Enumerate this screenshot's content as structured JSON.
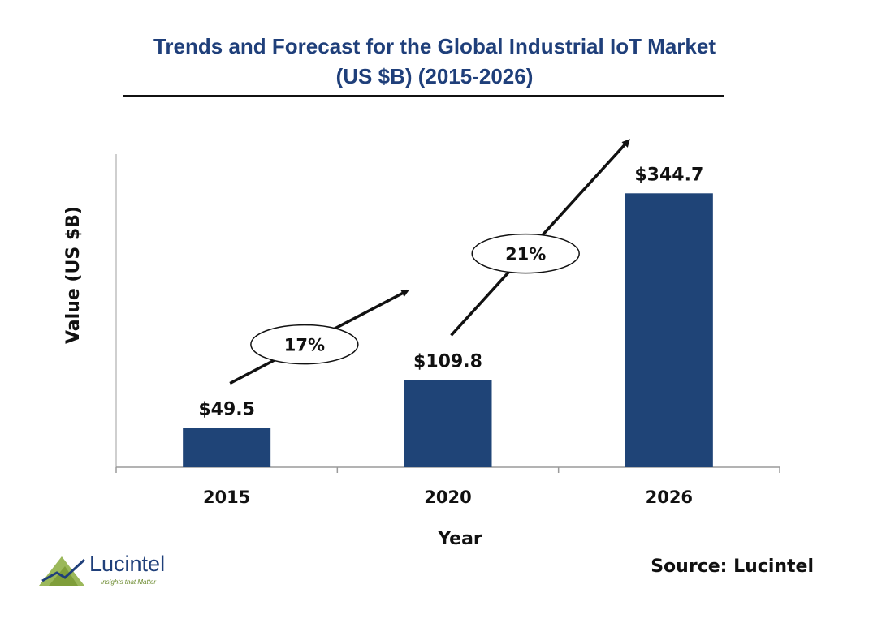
{
  "chart_data": {
    "type": "bar",
    "title": "Trends and Forecast for the Global Industrial IoT Market",
    "subtitle": "(US $B) (2015-2026)",
    "xlabel": "Year",
    "ylabel": "Value (US $B)",
    "categories": [
      "2015",
      "2020",
      "2026"
    ],
    "values": [
      49.5,
      109.8,
      344.7
    ],
    "value_labels": [
      "$49.5",
      "$109.8",
      "$344.7"
    ],
    "ylim": [
      0,
      394
    ],
    "grid": false,
    "bar_color": "#1f4477",
    "annotations": [
      {
        "label": "17%",
        "from": "2015",
        "to": "2020",
        "meaning": "growth arrow"
      },
      {
        "label": "21%",
        "from": "2020",
        "to": "2026",
        "meaning": "growth arrow"
      }
    ]
  },
  "source": "Source: Lucintel",
  "logo": {
    "brand": "Lucintel",
    "tagline": "Insights that Matter",
    "accent_color": "#8fae3f"
  }
}
